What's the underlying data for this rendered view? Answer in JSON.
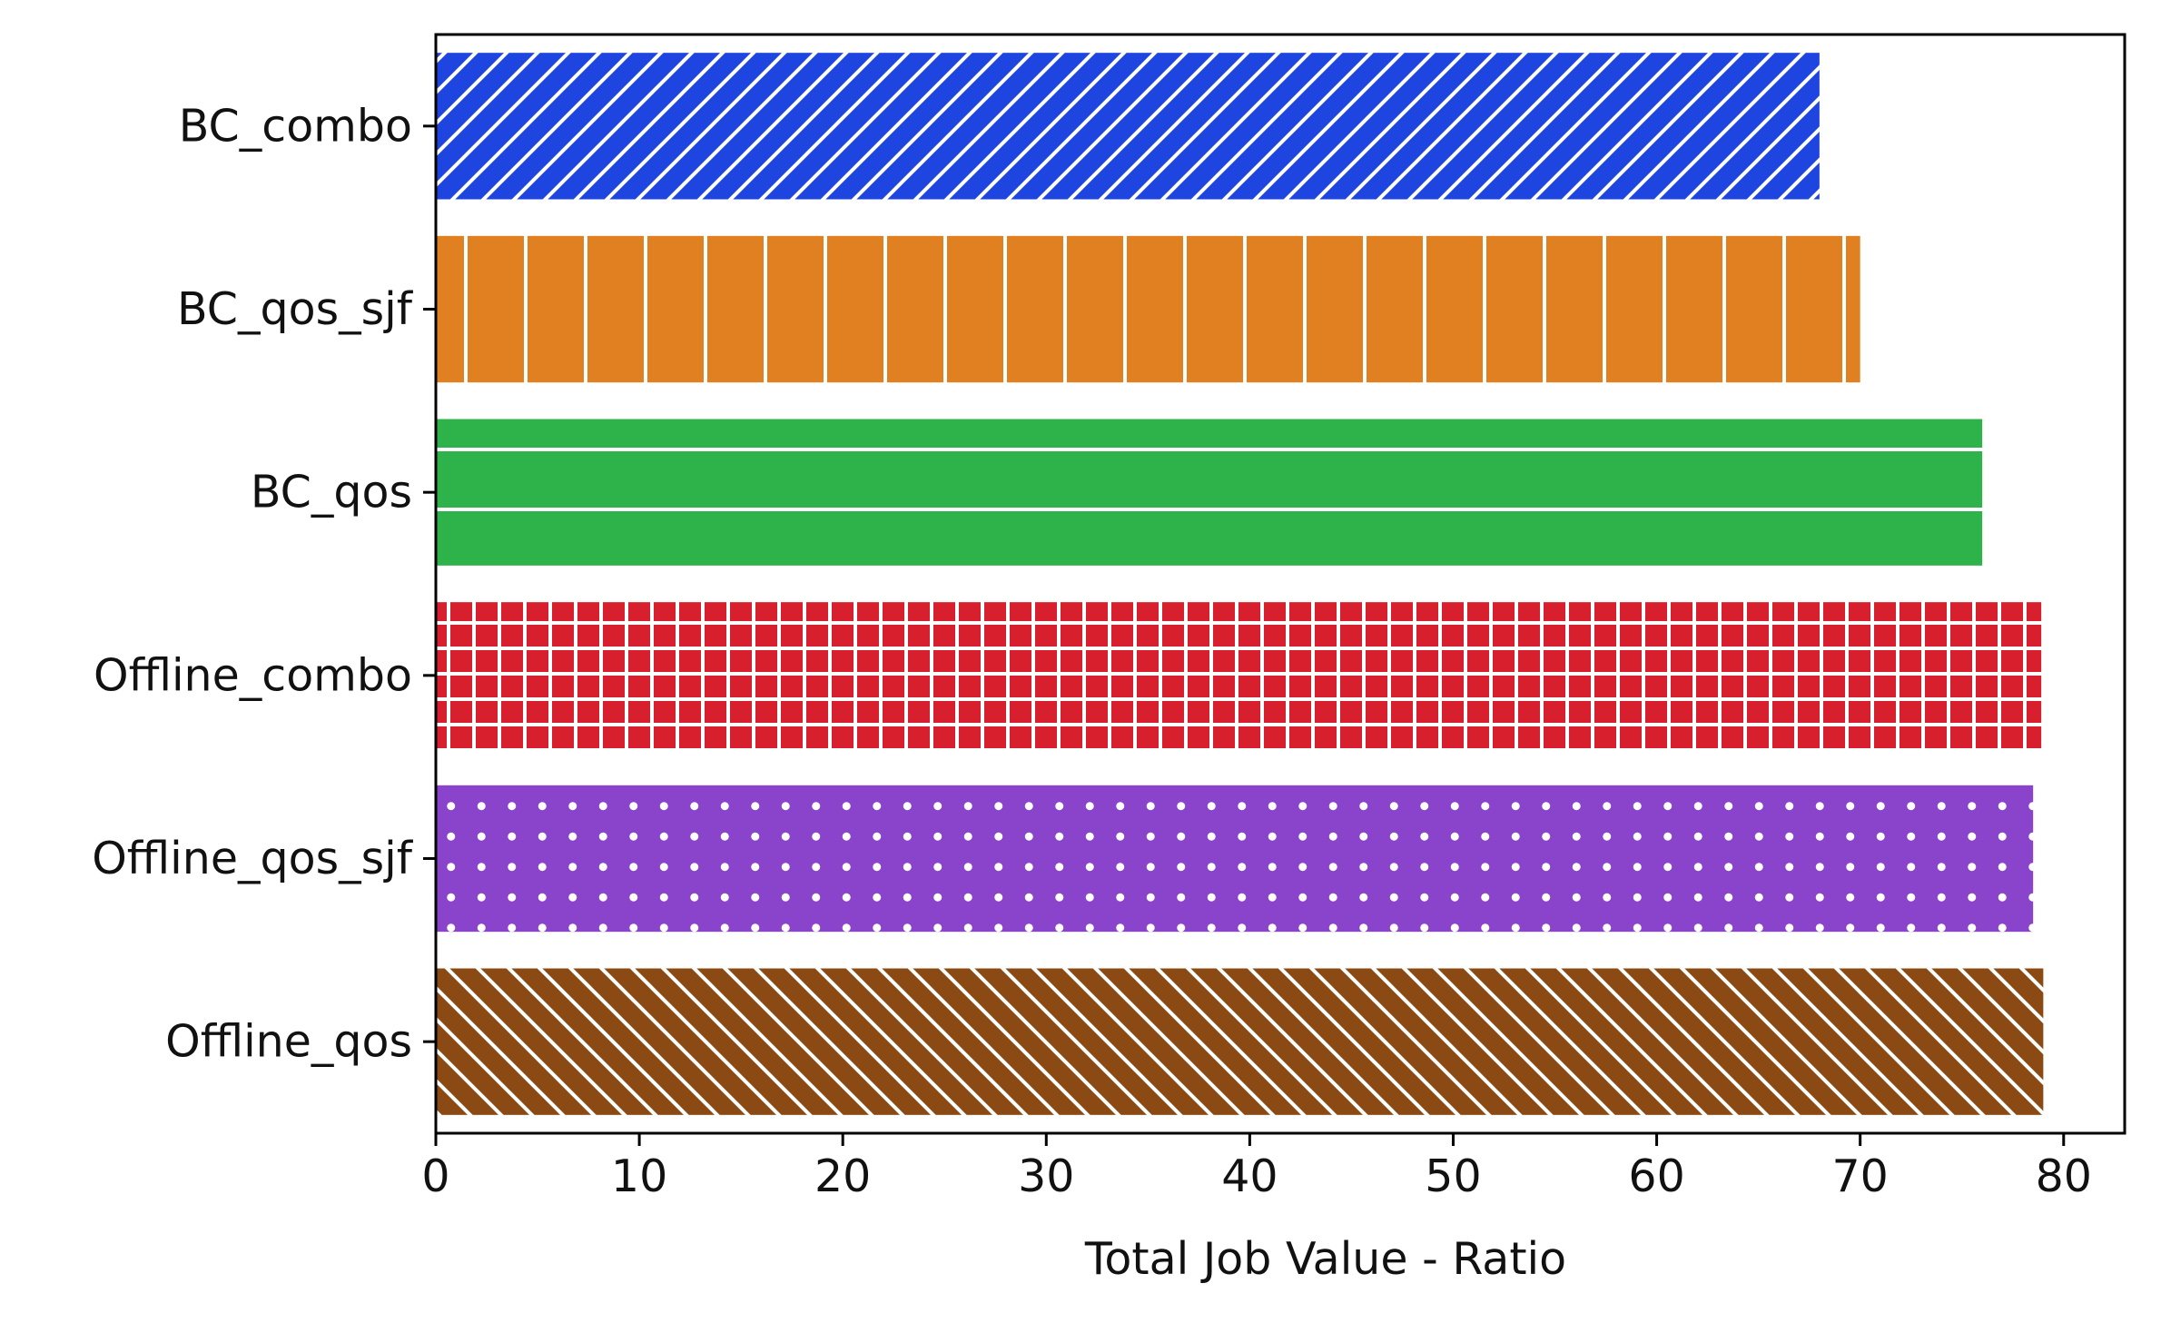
{
  "chart_data": {
    "type": "bar",
    "orientation": "horizontal",
    "title": "",
    "xlabel": "Total Job Value - Ratio",
    "ylabel": "",
    "xlim": [
      0,
      83
    ],
    "xticks": [
      0,
      10,
      20,
      30,
      40,
      50,
      60,
      70,
      80
    ],
    "xtick_labels": [
      "0",
      "10",
      "20",
      "30",
      "40",
      "50",
      "60",
      "70",
      "80"
    ],
    "grid": false,
    "legend": null,
    "bars": [
      {
        "label": "BC_combo",
        "value": 68.0,
        "color": "#1f45e0",
        "hatch": "forward-diagonal"
      },
      {
        "label": "BC_qos_sjf",
        "value": 70.0,
        "color": "#e08020",
        "hatch": "vertical"
      },
      {
        "label": "BC_qos",
        "value": 76.0,
        "color": "#2db34a",
        "hatch": "horizontal"
      },
      {
        "label": "Offline_combo",
        "value": 78.9,
        "color": "#d81f2e",
        "hatch": "grid"
      },
      {
        "label": "Offline_qos_sjf",
        "value": 78.5,
        "color": "#8a44cc",
        "hatch": "dots"
      },
      {
        "label": "Offline_qos",
        "value": 79.0,
        "color": "#8b4a14",
        "hatch": "back-diagonal"
      }
    ]
  }
}
